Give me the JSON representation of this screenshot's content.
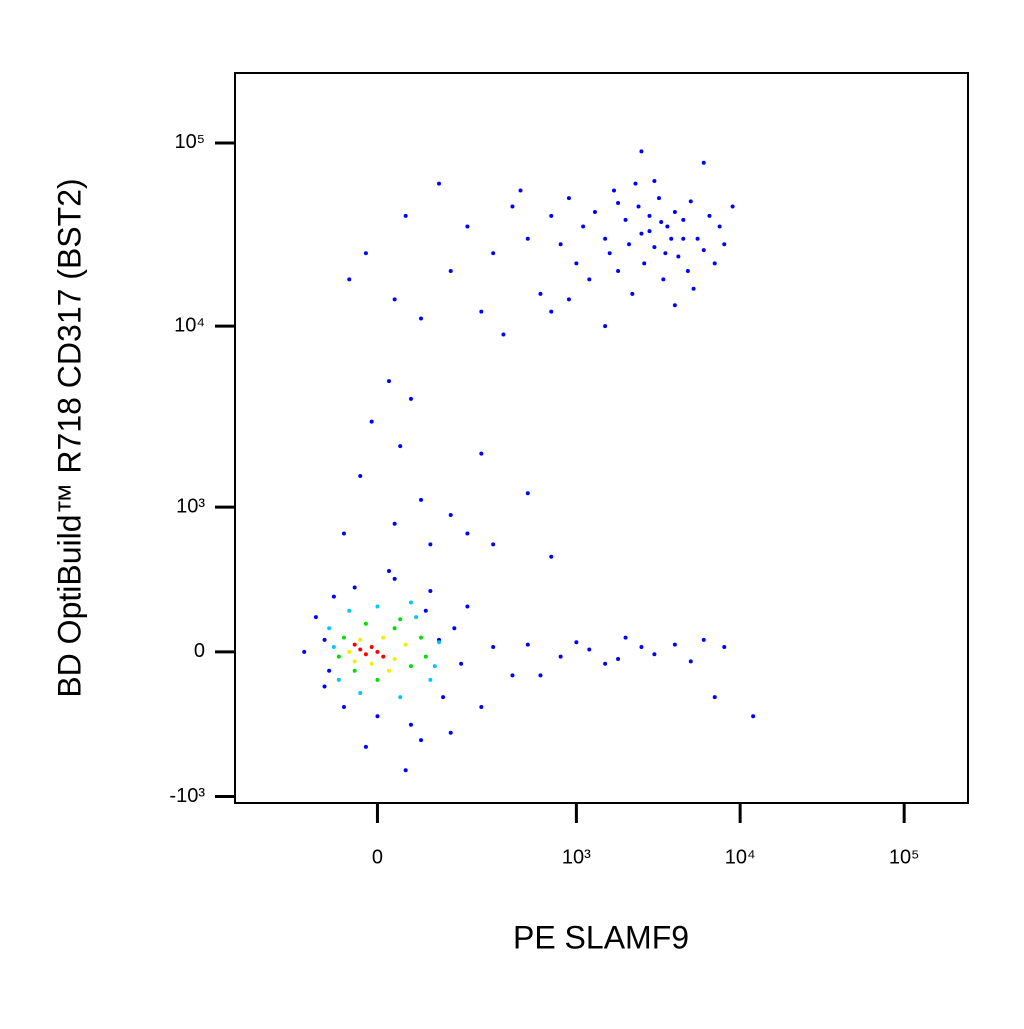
{
  "chart_data": {
    "type": "scatter",
    "x_label": "PE  SLAMF9",
    "y_label": "BD OptiBuild™ R718 CD317 (BST2)",
    "xscale": "biexponential",
    "yscale": "biexponential",
    "xlim": [
      -446,
      245000
    ],
    "ylim": [
      -1089,
      241000
    ],
    "xticks": [
      {
        "value": 0,
        "label": "0"
      },
      {
        "value": 1000,
        "label": "10³"
      },
      {
        "value": 10000,
        "label": "10⁴"
      },
      {
        "value": 100000,
        "label": "10⁵"
      }
    ],
    "yticks": [
      {
        "value": -1000,
        "label": "-10³"
      },
      {
        "value": 0,
        "label": "0"
      },
      {
        "value": 1000,
        "label": "10³"
      },
      {
        "value": 10000,
        "label": "10⁴"
      },
      {
        "value": 100000,
        "label": "10⁵"
      }
    ],
    "series": [
      {
        "color": "#0000ff",
        "x": [
          150,
          200,
          300,
          400,
          500,
          600,
          700,
          800,
          900,
          1000,
          1100,
          1200,
          1300,
          1500,
          1600,
          1700,
          1800,
          2000,
          2100,
          2200,
          2400,
          2500,
          2600,
          2800,
          3000,
          3200,
          3400,
          3600,
          3800,
          4000,
          4200,
          4500,
          4800,
          5000,
          5500,
          6000,
          6500,
          7000,
          7500,
          8000,
          9000,
          250,
          80,
          -20,
          50,
          120,
          350,
          700,
          1500,
          3000,
          4000,
          6000,
          2500,
          -50,
          30,
          450,
          900,
          1800,
          2300,
          5200,
          3500,
          4500,
          2800,
          3300,
          20,
          -10,
          40,
          60,
          -30,
          80,
          150,
          200,
          300,
          100,
          250,
          500,
          700,
          30,
          -60,
          500,
          800,
          1000,
          1200,
          1500,
          2000,
          2500,
          3000,
          4000,
          5000,
          6000,
          7000,
          8000,
          12000,
          600,
          1800,
          -150,
          -120,
          -100,
          -80,
          -60,
          -40,
          0,
          30,
          60,
          100,
          130,
          160,
          180,
          200,
          250,
          150,
          -20,
          50,
          20,
          80,
          -100,
          120,
          300,
          400,
          -90,
          90
        ],
        "values": [
          20000,
          35000,
          25000,
          45000,
          30000,
          15000,
          40000,
          28000,
          50000,
          22000,
          35000,
          18000,
          42000,
          30000,
          25000,
          55000,
          20000,
          38000,
          28000,
          15000,
          45000,
          32000,
          22000,
          40000,
          27000,
          50000,
          18000,
          35000,
          30000,
          42000,
          24000,
          38000,
          20000,
          48000,
          30000,
          26000,
          40000,
          22000,
          35000,
          28000,
          45000,
          12000,
          11000,
          25000,
          40000,
          60000,
          9000,
          12000,
          10000,
          62000,
          13000,
          78000,
          90000,
          18000,
          14000,
          55000,
          14000,
          47000,
          60000,
          16000,
          25000,
          30000,
          33000,
          37000,
          5000,
          3000,
          2200,
          4000,
          1500,
          1100,
          900,
          700,
          600,
          600,
          2000,
          1200,
          500,
          800,
          700,
          30,
          -20,
          40,
          10,
          -50,
          60,
          20,
          -10,
          30,
          -40,
          50,
          -200,
          20,
          -300,
          -100,
          -30,
          0,
          150,
          -150,
          250,
          -250,
          300,
          -300,
          350,
          -350,
          280,
          -200,
          100,
          -50,
          200,
          -250,
          -400,
          -500,
          -700,
          400,
          -450,
          50,
          50,
          20,
          -100,
          -80,
          180
        ]
      },
      {
        "color": "#00c8ff",
        "x": [
          -90,
          -70,
          -50,
          -30,
          0,
          40,
          70,
          100,
          120,
          110,
          -80,
          60
        ],
        "values": [
          100,
          -120,
          180,
          -180,
          200,
          -200,
          150,
          -120,
          40,
          -60,
          20,
          220
        ]
      },
      {
        "color": "#00e000",
        "x": [
          -60,
          -40,
          -20,
          0,
          30,
          60,
          80,
          90,
          -70,
          40
        ],
        "values": [
          60,
          -80,
          120,
          -120,
          100,
          -60,
          60,
          -20,
          -20,
          140
        ]
      },
      {
        "color": "#f0f000",
        "x": [
          -50,
          -30,
          -10,
          10,
          30,
          50,
          -40,
          20
        ],
        "values": [
          0,
          50,
          -50,
          60,
          -30,
          30,
          -40,
          -80
        ]
      },
      {
        "color": "#ff0000",
        "x": [
          -30,
          -20,
          -10,
          0,
          -40,
          10
        ],
        "values": [
          10,
          -10,
          20,
          0,
          30,
          -20
        ]
      }
    ]
  }
}
